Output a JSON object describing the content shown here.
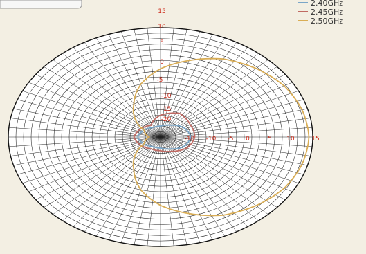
{
  "chart_data": {
    "type": "polar",
    "scale": "dB",
    "radial_ticks": [
      "15",
      "10",
      "5",
      "0",
      "-5",
      "-10",
      "-15",
      "-20"
    ],
    "horizontal_ticks": [
      "-18",
      "-10",
      "-5",
      "0",
      "5",
      "10",
      "15"
    ],
    "rlim": [
      -25,
      15
    ],
    "grid": true,
    "legend_position": "top-right",
    "series": [
      {
        "name": "2.40GHz",
        "color": "#7aa6c8",
        "theta_deg": [
          0,
          30,
          60,
          90,
          120,
          150,
          180,
          210,
          240,
          270,
          300,
          330
        ],
        "r_dB": [
          -17,
          -18,
          -20,
          -21,
          -21,
          -20,
          -19,
          -20,
          -21,
          -21,
          -20,
          -18
        ]
      },
      {
        "name": "2.45GHz",
        "color": "#c06a63",
        "theta_deg": [
          0,
          30,
          60,
          90,
          120,
          150,
          180,
          210,
          240,
          270,
          300,
          330
        ],
        "r_dB": [
          -16,
          -16,
          -15,
          -17,
          -20,
          -19,
          -18,
          -19,
          -20,
          -20,
          -19,
          -17
        ]
      },
      {
        "name": "2.50GHz",
        "color": "#d9ad55",
        "theta_deg": [
          0,
          15,
          30,
          45,
          60,
          75,
          90,
          105,
          120,
          150,
          180,
          210,
          240,
          255,
          270,
          285,
          300,
          315,
          330,
          345
        ],
        "r_dB": [
          14,
          13.5,
          12.5,
          10.5,
          8,
          4,
          0,
          -5,
          -11,
          -20,
          -22,
          -20,
          -11,
          -5,
          0,
          4,
          8,
          10.5,
          12.5,
          13.5
        ]
      }
    ]
  },
  "colors": {
    "background": "#f3efe3",
    "plot_fill": "#ffffff",
    "grid": "#222222",
    "tick_label": "#cc2a1a"
  }
}
